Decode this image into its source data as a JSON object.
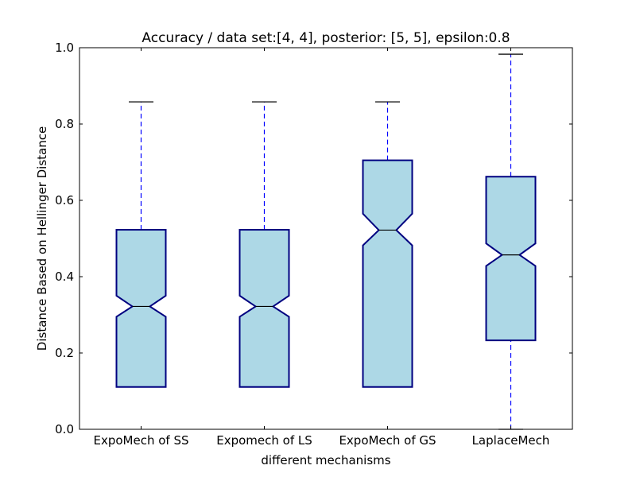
{
  "chart_data": {
    "type": "boxplot",
    "title": "Accuracy / data set:[4, 4], posterior: [5, 5], epsilon:0.8",
    "xlabel": "different mechanisms",
    "ylabel": "Distance Based on Hellinger Distance",
    "ylim": [
      0.0,
      1.0
    ],
    "yticks": [
      "0.0",
      "0.2",
      "0.4",
      "0.6",
      "0.8",
      "1.0"
    ],
    "categories": [
      "ExpoMech of SS",
      "Expomech of LS",
      "ExpoMech of GS",
      "LaplaceMech"
    ],
    "boxes": [
      {
        "whisker_low": 0.111,
        "q1": 0.111,
        "notch_low": 0.295,
        "median": 0.322,
        "notch_high": 0.35,
        "q3": 0.523,
        "whisker_high": 0.858
      },
      {
        "whisker_low": 0.111,
        "q1": 0.111,
        "notch_low": 0.295,
        "median": 0.322,
        "notch_high": 0.35,
        "q3": 0.523,
        "whisker_high": 0.858
      },
      {
        "whisker_low": 0.111,
        "q1": 0.111,
        "notch_low": 0.482,
        "median": 0.522,
        "notch_high": 0.565,
        "q3": 0.705,
        "whisker_high": 0.858
      },
      {
        "whisker_low": 0.0,
        "q1": 0.233,
        "notch_low": 0.428,
        "median": 0.457,
        "notch_high": 0.487,
        "q3": 0.662,
        "whisker_high": 0.983
      }
    ],
    "grid": false,
    "colors": {
      "box_fill": "#add8e6",
      "box_edge": "#000080",
      "whisker": "#0000ff",
      "median": "#000000"
    }
  }
}
